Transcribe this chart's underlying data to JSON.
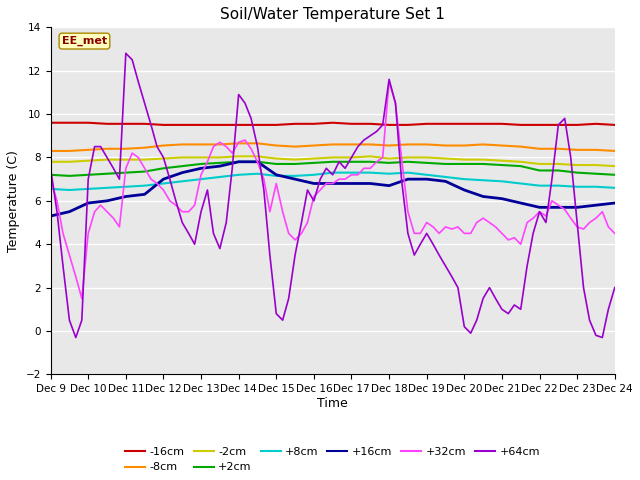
{
  "title": "Soil/Water Temperature Set 1",
  "xlabel": "Time",
  "ylabel": "Temperature (C)",
  "ylim": [
    -2,
    14
  ],
  "yticks": [
    -2,
    0,
    2,
    4,
    6,
    8,
    10,
    12,
    14
  ],
  "bg_color": "#e8e8e8",
  "annotation_text": "EE_met",
  "annotation_color": "#8b0000",
  "annotation_bg": "#ffffc0",
  "series_order": [
    "-16cm",
    "-8cm",
    "-2cm",
    "+2cm",
    "+8cm",
    "+16cm",
    "+32cm",
    "+64cm"
  ],
  "series": {
    "-16cm": {
      "color": "#cc0000",
      "linewidth": 1.5,
      "data_x": [
        9,
        9.5,
        10,
        10.5,
        11,
        11.5,
        12,
        12.5,
        13,
        13.5,
        14,
        14.5,
        15,
        15.5,
        16,
        16.5,
        17,
        17.5,
        18,
        18.5,
        19,
        19.5,
        20,
        20.5,
        21,
        21.5,
        22,
        22.5,
        23,
        23.5,
        24
      ],
      "data_y": [
        9.6,
        9.6,
        9.6,
        9.55,
        9.55,
        9.55,
        9.5,
        9.5,
        9.5,
        9.5,
        9.5,
        9.5,
        9.5,
        9.55,
        9.55,
        9.6,
        9.55,
        9.55,
        9.5,
        9.5,
        9.55,
        9.55,
        9.55,
        9.55,
        9.55,
        9.5,
        9.5,
        9.5,
        9.5,
        9.55,
        9.5
      ]
    },
    "-8cm": {
      "color": "#ff8c00",
      "linewidth": 1.5,
      "data_x": [
        9,
        9.5,
        10,
        10.5,
        11,
        11.5,
        12,
        12.5,
        13,
        13.5,
        14,
        14.5,
        15,
        15.5,
        16,
        16.5,
        17,
        17.5,
        18,
        18.5,
        19,
        19.5,
        20,
        20.5,
        21,
        21.5,
        22,
        22.5,
        23,
        23.5,
        24
      ],
      "data_y": [
        8.3,
        8.3,
        8.35,
        8.4,
        8.4,
        8.45,
        8.55,
        8.6,
        8.6,
        8.6,
        8.65,
        8.65,
        8.55,
        8.5,
        8.55,
        8.6,
        8.6,
        8.6,
        8.55,
        8.6,
        8.6,
        8.55,
        8.55,
        8.6,
        8.55,
        8.5,
        8.4,
        8.4,
        8.35,
        8.35,
        8.3
      ]
    },
    "-2cm": {
      "color": "#cccc00",
      "linewidth": 1.5,
      "data_x": [
        9,
        9.5,
        10,
        10.5,
        11,
        11.5,
        12,
        12.5,
        13,
        13.5,
        14,
        14.5,
        15,
        15.5,
        16,
        16.5,
        17,
        17.5,
        18,
        18.5,
        19,
        19.5,
        20,
        20.5,
        21,
        21.5,
        22,
        22.5,
        23,
        23.5,
        24
      ],
      "data_y": [
        7.8,
        7.8,
        7.85,
        7.9,
        7.9,
        7.9,
        7.95,
        8.0,
        8.0,
        8.0,
        8.05,
        8.05,
        7.95,
        7.9,
        7.95,
        8.0,
        8.0,
        8.05,
        7.95,
        8.0,
        8.0,
        7.95,
        7.9,
        7.9,
        7.85,
        7.8,
        7.7,
        7.7,
        7.65,
        7.65,
        7.6
      ]
    },
    "+2cm": {
      "color": "#00aa00",
      "linewidth": 1.5,
      "data_x": [
        9,
        9.5,
        10,
        10.5,
        11,
        11.5,
        12,
        12.5,
        13,
        13.5,
        14,
        14.5,
        15,
        15.5,
        16,
        16.5,
        17,
        17.5,
        18,
        18.5,
        19,
        19.5,
        20,
        20.5,
        21,
        21.5,
        22,
        22.5,
        23,
        23.5,
        24
      ],
      "data_y": [
        7.2,
        7.15,
        7.2,
        7.25,
        7.3,
        7.35,
        7.5,
        7.6,
        7.7,
        7.75,
        7.8,
        7.8,
        7.7,
        7.7,
        7.75,
        7.8,
        7.8,
        7.8,
        7.75,
        7.8,
        7.75,
        7.7,
        7.7,
        7.7,
        7.65,
        7.6,
        7.4,
        7.4,
        7.3,
        7.25,
        7.2
      ]
    },
    "+8cm": {
      "color": "#00cccc",
      "linewidth": 1.5,
      "data_x": [
        9,
        9.5,
        10,
        10.5,
        11,
        11.5,
        12,
        12.5,
        13,
        13.5,
        14,
        14.5,
        15,
        15.5,
        16,
        16.5,
        17,
        17.5,
        18,
        18.5,
        19,
        19.5,
        20,
        20.5,
        21,
        21.5,
        22,
        22.5,
        23,
        23.5,
        24
      ],
      "data_y": [
        6.55,
        6.5,
        6.55,
        6.6,
        6.65,
        6.7,
        6.8,
        6.9,
        7.0,
        7.1,
        7.2,
        7.25,
        7.15,
        7.15,
        7.2,
        7.3,
        7.3,
        7.3,
        7.25,
        7.3,
        7.2,
        7.1,
        7.0,
        6.95,
        6.9,
        6.8,
        6.7,
        6.7,
        6.65,
        6.65,
        6.6
      ]
    },
    "+16cm": {
      "color": "#000099",
      "linewidth": 2.0,
      "data_x": [
        9,
        9.5,
        10,
        10.5,
        11,
        11.5,
        12,
        12.5,
        13,
        13.5,
        14,
        14.5,
        15,
        15.5,
        16,
        16.5,
        17,
        17.5,
        18,
        18.5,
        19,
        19.5,
        20,
        20.5,
        21,
        21.5,
        22,
        22.5,
        23,
        23.5,
        24
      ],
      "data_y": [
        5.3,
        5.5,
        5.9,
        6.0,
        6.2,
        6.3,
        7.0,
        7.3,
        7.5,
        7.6,
        7.8,
        7.8,
        7.2,
        7.0,
        6.8,
        6.8,
        6.8,
        6.8,
        6.7,
        7.0,
        7.0,
        6.9,
        6.5,
        6.2,
        6.1,
        5.9,
        5.7,
        5.7,
        5.7,
        5.8,
        5.9
      ]
    },
    "+32cm": {
      "color": "#ff44ff",
      "linewidth": 1.2,
      "data_x": [
        9,
        9.17,
        9.33,
        9.5,
        9.67,
        9.83,
        10,
        10.17,
        10.33,
        10.5,
        10.67,
        10.83,
        11,
        11.17,
        11.33,
        11.5,
        11.67,
        11.83,
        12,
        12.17,
        12.33,
        12.5,
        12.67,
        12.83,
        13,
        13.17,
        13.33,
        13.5,
        13.67,
        13.83,
        14,
        14.17,
        14.33,
        14.5,
        14.67,
        14.83,
        15,
        15.17,
        15.33,
        15.5,
        15.67,
        15.83,
        16,
        16.17,
        16.33,
        16.5,
        16.67,
        16.83,
        17,
        17.17,
        17.33,
        17.5,
        17.67,
        17.83,
        18,
        18.17,
        18.33,
        18.5,
        18.67,
        18.83,
        19,
        19.17,
        19.33,
        19.5,
        19.67,
        19.83,
        20,
        20.17,
        20.33,
        20.5,
        20.67,
        20.83,
        21,
        21.17,
        21.33,
        21.5,
        21.67,
        21.83,
        22,
        22.17,
        22.33,
        22.5,
        22.67,
        22.83,
        23,
        23.17,
        23.33,
        23.5,
        23.67,
        23.83,
        24
      ],
      "data_y": [
        7.0,
        6.0,
        4.5,
        3.5,
        2.5,
        1.5,
        4.5,
        5.5,
        5.8,
        5.5,
        5.2,
        4.8,
        7.5,
        8.2,
        8.0,
        7.5,
        7.0,
        6.8,
        6.5,
        6.0,
        5.8,
        5.5,
        5.5,
        5.8,
        7.2,
        7.8,
        8.5,
        8.7,
        8.5,
        8.2,
        8.7,
        8.8,
        8.4,
        7.8,
        7.0,
        5.5,
        6.8,
        5.5,
        4.5,
        4.2,
        4.5,
        5.0,
        6.2,
        6.5,
        6.8,
        6.8,
        7.0,
        7.0,
        7.2,
        7.2,
        7.5,
        7.5,
        7.8,
        8.0,
        11.5,
        10.5,
        8.0,
        5.5,
        4.5,
        4.5,
        5.0,
        4.8,
        4.5,
        4.8,
        4.7,
        4.8,
        4.5,
        4.5,
        5.0,
        5.2,
        5.0,
        4.8,
        4.5,
        4.2,
        4.3,
        4.0,
        5.0,
        5.2,
        5.5,
        5.3,
        6.0,
        5.8,
        5.6,
        5.2,
        4.8,
        4.7,
        5.0,
        5.2,
        5.5,
        4.8,
        4.5
      ]
    },
    "+64cm": {
      "color": "#9900cc",
      "linewidth": 1.2,
      "data_x": [
        9,
        9.17,
        9.33,
        9.5,
        9.67,
        9.83,
        10,
        10.17,
        10.33,
        10.5,
        10.67,
        10.83,
        11,
        11.17,
        11.33,
        11.5,
        11.67,
        11.83,
        12,
        12.17,
        12.33,
        12.5,
        12.67,
        12.83,
        13,
        13.17,
        13.33,
        13.5,
        13.67,
        13.83,
        14,
        14.17,
        14.33,
        14.5,
        14.67,
        14.83,
        15,
        15.17,
        15.33,
        15.5,
        15.67,
        15.83,
        16,
        16.17,
        16.33,
        16.5,
        16.67,
        16.83,
        17,
        17.17,
        17.33,
        17.5,
        17.67,
        17.83,
        18,
        18.17,
        18.33,
        18.5,
        18.67,
        18.83,
        19,
        19.17,
        19.33,
        19.5,
        19.67,
        19.83,
        20,
        20.17,
        20.33,
        20.5,
        20.67,
        20.83,
        21,
        21.17,
        21.33,
        21.5,
        21.67,
        21.83,
        22,
        22.17,
        22.33,
        22.5,
        22.67,
        22.83,
        23,
        23.17,
        23.33,
        23.5,
        23.67,
        23.83,
        24
      ],
      "data_y": [
        7.5,
        5.5,
        3.0,
        0.5,
        -0.3,
        0.5,
        7.0,
        8.5,
        8.5,
        8.0,
        7.5,
        7.0,
        12.8,
        12.5,
        11.5,
        10.5,
        9.5,
        8.5,
        8.0,
        7.0,
        6.0,
        5.0,
        4.5,
        4.0,
        5.5,
        6.5,
        4.5,
        3.8,
        5.0,
        7.5,
        10.9,
        10.5,
        9.8,
        8.5,
        6.5,
        3.5,
        0.8,
        0.5,
        1.5,
        3.5,
        5.0,
        6.5,
        6.0,
        7.0,
        7.5,
        7.2,
        7.8,
        7.5,
        8.0,
        8.5,
        8.8,
        9.0,
        9.2,
        9.5,
        11.6,
        10.5,
        7.0,
        4.5,
        3.5,
        4.0,
        4.5,
        4.0,
        3.5,
        3.0,
        2.5,
        2.0,
        0.2,
        -0.1,
        0.5,
        1.5,
        2.0,
        1.5,
        1.0,
        0.8,
        1.2,
        1.0,
        3.0,
        4.5,
        5.5,
        5.0,
        7.0,
        9.5,
        9.8,
        8.0,
        5.0,
        2.0,
        0.5,
        -0.2,
        -0.3,
        1.0,
        2.0
      ]
    }
  },
  "legend_row1": [
    {
      "label": "-16cm",
      "color": "#cc0000"
    },
    {
      "label": "-8cm",
      "color": "#ff8c00"
    },
    {
      "label": "-2cm",
      "color": "#cccc00"
    },
    {
      "label": "+2cm",
      "color": "#00aa00"
    },
    {
      "label": "+8cm",
      "color": "#00cccc"
    },
    {
      "label": "+16cm",
      "color": "#000099"
    }
  ],
  "legend_row2": [
    {
      "label": "+32cm",
      "color": "#ff44ff"
    },
    {
      "label": "+64cm",
      "color": "#9900cc"
    }
  ],
  "xtick_positions": [
    9,
    10,
    11,
    12,
    13,
    14,
    15,
    16,
    17,
    18,
    19,
    20,
    21,
    22,
    23,
    24
  ],
  "xtick_labels": [
    "Dec 9",
    "Dec 10",
    "Dec 11",
    "Dec 12",
    "Dec 13",
    "Dec 14",
    "Dec 15",
    "Dec 16",
    "Dec 17",
    "Dec 18",
    "Dec 19",
    "Dec 20",
    "Dec 21",
    "Dec 22",
    "Dec 23",
    "Dec 24"
  ]
}
